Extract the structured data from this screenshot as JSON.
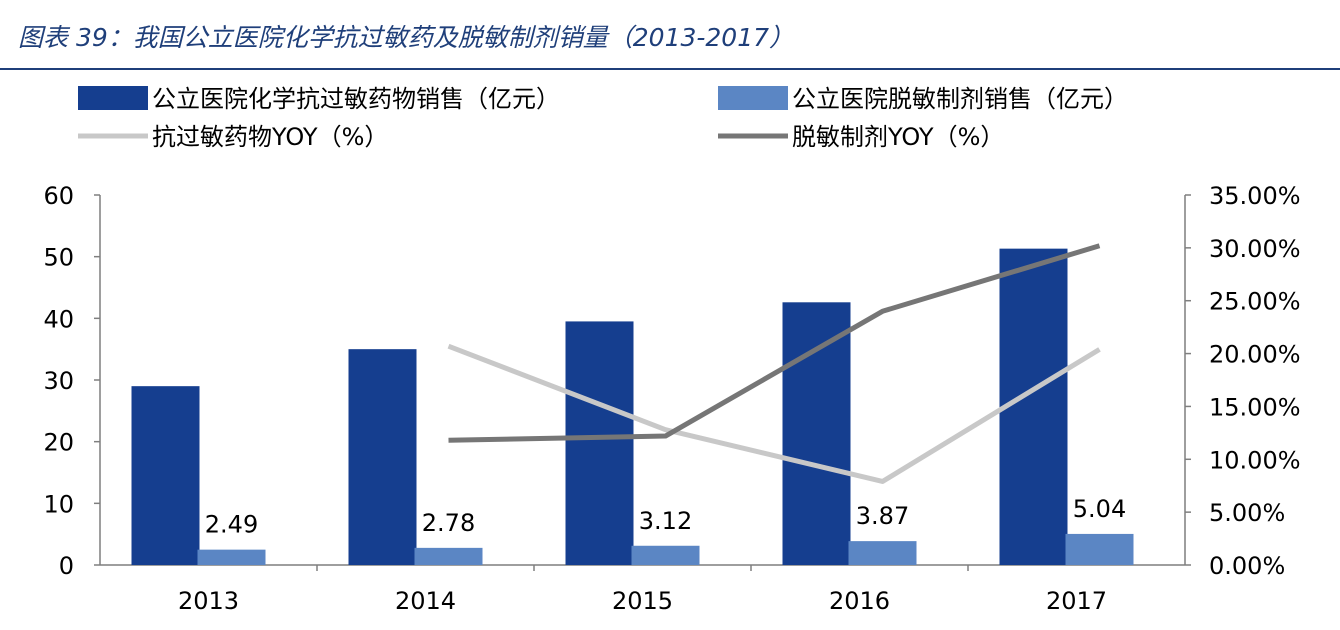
{
  "title": "图表 39：我国公立医院化学抗过敏药及脱敏制剂销量（2013-2017）",
  "colors": {
    "title": "#1f3f7a",
    "bar_primary": "#153e8f",
    "bar_secondary": "#5b86c4",
    "line_light": "#c8c8c8",
    "line_dark": "#767676"
  },
  "chart_data": {
    "type": "bar",
    "categories": [
      "2013",
      "2014",
      "2015",
      "2016",
      "2017"
    ],
    "series": [
      {
        "name": "公立医院化学抗过敏药物销售（亿元）",
        "kind": "bar",
        "axis": "left",
        "values": [
          29.0,
          35.0,
          39.5,
          42.6,
          51.3
        ]
      },
      {
        "name": "公立医院脱敏制剂销售（亿元）",
        "kind": "bar",
        "axis": "left",
        "values": [
          2.49,
          2.78,
          3.12,
          3.87,
          5.04
        ],
        "data_labels": [
          "2.49",
          "2.78",
          "3.12",
          "3.87",
          "5.04"
        ]
      },
      {
        "name": "抗过敏药物YOY（%）",
        "kind": "line",
        "axis": "right",
        "values": [
          null,
          0.207,
          0.128,
          0.079,
          0.204
        ]
      },
      {
        "name": "脱敏制剂YOY（%）",
        "kind": "line",
        "axis": "right",
        "values": [
          null,
          0.118,
          0.122,
          0.24,
          0.302
        ]
      }
    ],
    "y_left": {
      "min": 0,
      "max": 60,
      "ticks": [
        "0",
        "10",
        "20",
        "30",
        "40",
        "50",
        "60"
      ]
    },
    "y_right": {
      "min": 0,
      "max": 0.35,
      "ticks": [
        "0.00%",
        "5.00%",
        "10.00%",
        "15.00%",
        "20.00%",
        "25.00%",
        "30.00%",
        "35.00%"
      ]
    },
    "legend_position": "top",
    "grid": false
  }
}
